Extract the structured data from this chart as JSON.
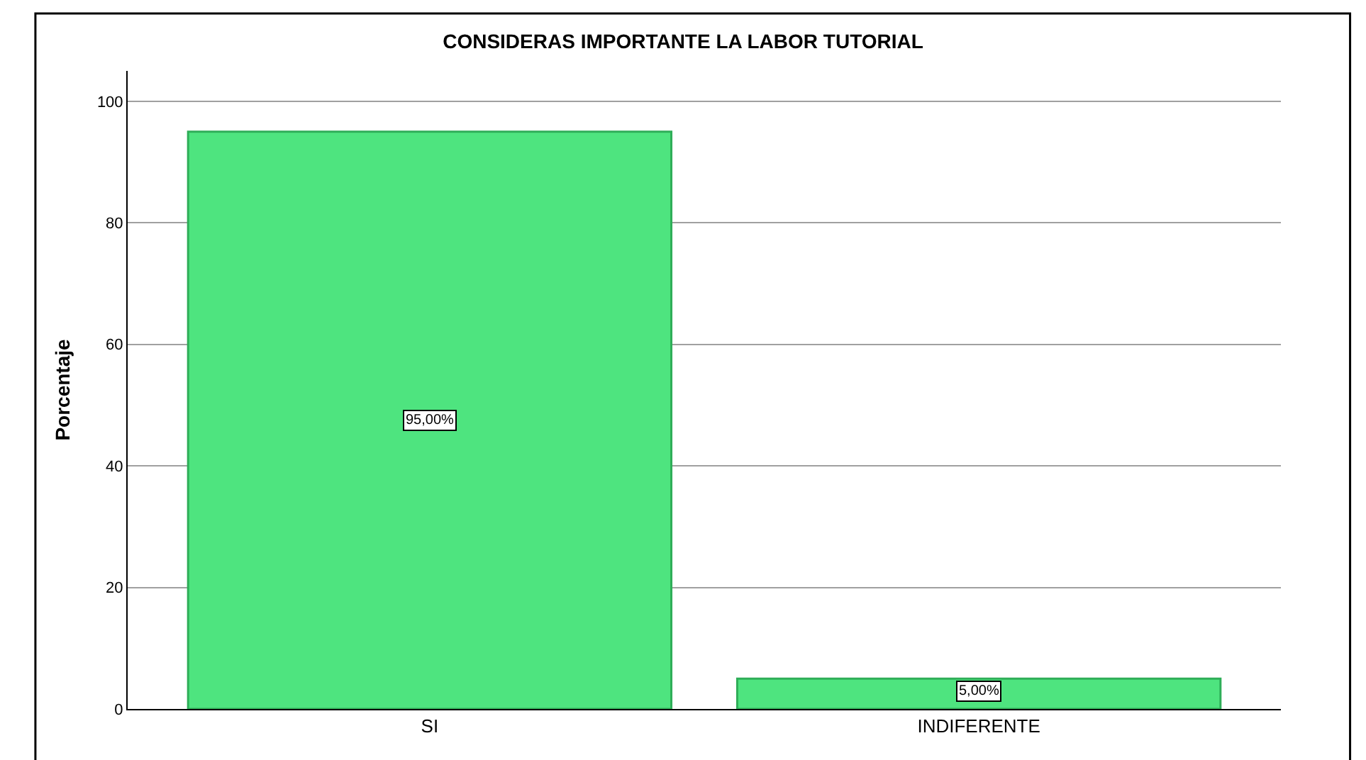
{
  "chart_data": {
    "type": "bar",
    "title": "CONSIDERAS IMPORTANTE LA LABOR TUTORIAL",
    "ylabel": "Porcentaje",
    "categories": [
      "SI",
      "INDIFERENTE"
    ],
    "values": [
      95,
      5
    ],
    "value_labels": [
      "95,00%",
      "5,00%"
    ],
    "color": "#4ee47f",
    "ylim": [
      0,
      105
    ],
    "yticks": [
      0,
      20,
      40,
      60,
      80,
      100
    ],
    "grid": "y"
  }
}
